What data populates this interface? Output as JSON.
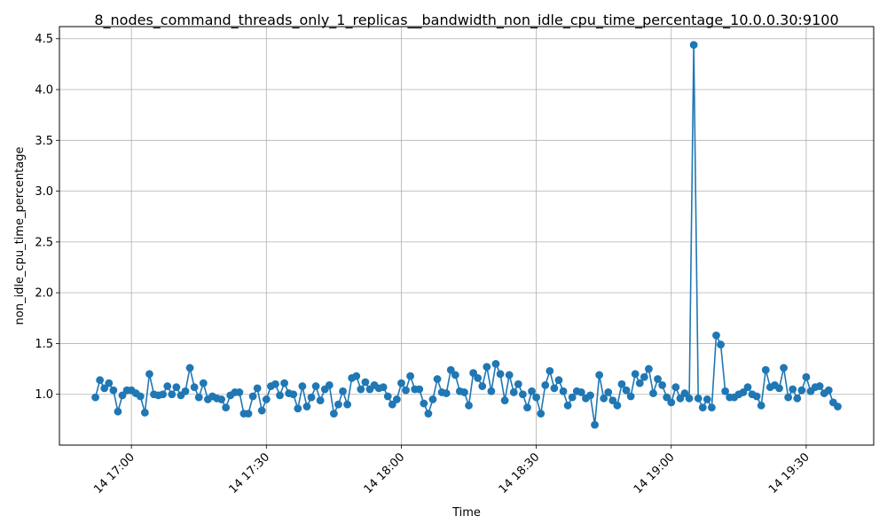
{
  "chart_data": {
    "type": "line",
    "title": "8_nodes_command_threads_only_1_replicas__bandwidth_non_idle_cpu_time_percentage_10.0.0.30:9100",
    "xlabel": "Time",
    "ylabel": "non_idle_cpu_time_percentage",
    "x_start": "14 16:52",
    "x_interval_minutes": 1,
    "xlim": [
      "14 16:44",
      "14 19:45"
    ],
    "ylim": [
      0.5,
      4.62
    ],
    "x_ticks": [
      "14 17:00",
      "14 17:30",
      "14 18:00",
      "14 18:30",
      "14 19:00",
      "14 19:30"
    ],
    "y_ticks": [
      "1.0",
      "1.5",
      "2.0",
      "2.5",
      "3.0",
      "3.5",
      "4.0",
      "4.5"
    ],
    "y_tick_values": [
      1.0,
      1.5,
      2.0,
      2.5,
      3.0,
      3.5,
      4.0,
      4.5
    ],
    "grid": true,
    "marker": "circle",
    "color": "#1f77b4",
    "values": [
      0.97,
      1.14,
      1.06,
      1.11,
      1.04,
      0.83,
      0.99,
      1.04,
      1.04,
      1.01,
      0.98,
      0.82,
      1.2,
      1.0,
      0.99,
      1.0,
      1.08,
      1.0,
      1.07,
      0.99,
      1.03,
      1.26,
      1.07,
      0.97,
      1.11,
      0.95,
      0.98,
      0.96,
      0.95,
      0.87,
      0.99,
      1.02,
      1.02,
      0.81,
      0.81,
      0.98,
      1.06,
      0.84,
      0.95,
      1.08,
      1.1,
      0.99,
      1.11,
      1.01,
      1.0,
      0.86,
      1.08,
      0.88,
      0.97,
      1.08,
      0.94,
      1.05,
      1.09,
      0.81,
      0.9,
      1.03,
      0.9,
      1.16,
      1.18,
      1.05,
      1.12,
      1.05,
      1.09,
      1.06,
      1.07,
      0.98,
      0.9,
      0.95,
      1.11,
      1.04,
      1.18,
      1.05,
      1.05,
      0.91,
      0.81,
      0.95,
      1.15,
      1.02,
      1.01,
      1.24,
      1.19,
      1.03,
      1.02,
      0.89,
      1.21,
      1.16,
      1.08,
      1.27,
      1.03,
      1.3,
      1.2,
      0.94,
      1.19,
      1.02,
      1.1,
      1.0,
      0.87,
      1.03,
      0.97,
      0.81,
      1.09,
      1.23,
      1.06,
      1.14,
      1.03,
      0.89,
      0.97,
      1.03,
      1.02,
      0.96,
      0.99,
      0.7,
      1.19,
      0.96,
      1.02,
      0.94,
      0.89,
      1.1,
      1.04,
      0.98,
      1.2,
      1.11,
      1.17,
      1.25,
      1.01,
      1.15,
      1.09,
      0.97,
      0.92,
      1.07,
      0.96,
      1.01,
      0.96,
      4.44,
      0.96,
      0.87,
      0.95,
      0.87,
      1.58,
      1.49,
      1.03,
      0.97,
      0.97,
      1.0,
      1.02,
      1.07,
      1.0,
      0.98,
      0.89,
      1.24,
      1.07,
      1.09,
      1.06,
      1.26,
      0.97,
      1.05,
      0.96,
      1.04,
      1.17,
      1.03,
      1.07,
      1.08,
      1.01,
      1.04,
      0.92,
      0.88
    ]
  }
}
